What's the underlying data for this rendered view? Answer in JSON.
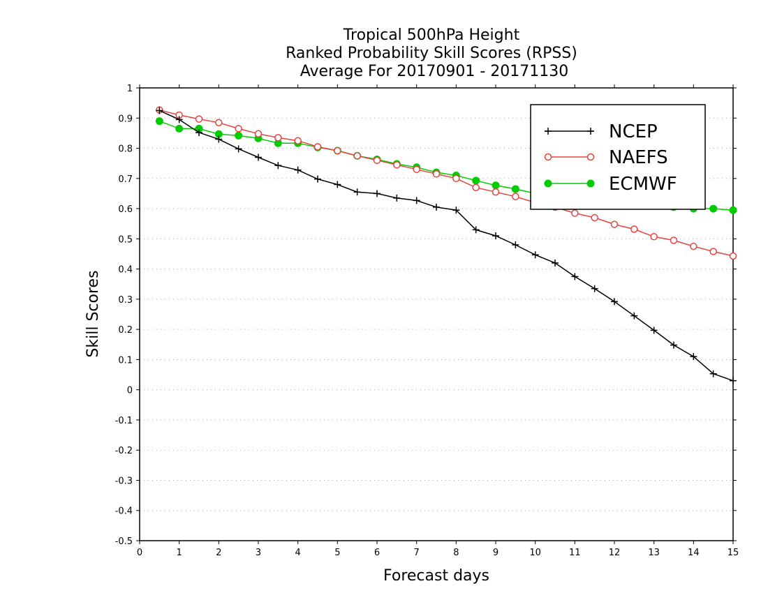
{
  "chart_data": {
    "type": "line",
    "title": [
      "Tropical 500hPa Height",
      "Ranked Probability Skill Scores (RPSS)",
      "Average For 20170901 - 20171130"
    ],
    "xlabel": "Forecast days",
    "ylabel": "Skill Scores",
    "xlim": [
      0,
      15
    ],
    "ylim": [
      -0.5,
      1
    ],
    "x_ticks": [
      "0",
      "1",
      "2",
      "3",
      "4",
      "5",
      "6",
      "7",
      "8",
      "9",
      "10",
      "11",
      "12",
      "13",
      "14",
      "15"
    ],
    "y_ticks": [
      "1",
      "0.9",
      "0.8",
      "0.7",
      "0.6",
      "0.5",
      "0.4",
      "0.3",
      "0.2",
      "0.1",
      "0",
      "-0.1",
      "-0.2",
      "-0.3",
      "-0.4",
      "-0.5"
    ],
    "grid": true,
    "legend_position": "top-right",
    "x": [
      0.5,
      1,
      1.5,
      2,
      2.5,
      3,
      3.5,
      4,
      4.5,
      5,
      5.5,
      6,
      6.5,
      7,
      7.5,
      8,
      8.5,
      9,
      9.5,
      10,
      10.5,
      11,
      11.5,
      12,
      12.5,
      13,
      13.5,
      14,
      14.5,
      15
    ],
    "series": [
      {
        "name": "NCEP",
        "color": "#000000",
        "marker": "plus",
        "values": [
          0.925,
          0.895,
          0.852,
          0.83,
          0.798,
          0.77,
          0.743,
          0.728,
          0.698,
          0.68,
          0.655,
          0.65,
          0.635,
          0.627,
          0.605,
          0.595,
          0.53,
          0.51,
          0.48,
          0.447,
          0.42,
          0.375,
          0.335,
          0.292,
          0.245,
          0.197,
          0.148,
          0.11,
          0.053,
          0.03
        ]
      },
      {
        "name": "NAEFS",
        "color": "#e8423f",
        "marker": "open-circle",
        "values": [
          0.927,
          0.91,
          0.897,
          0.885,
          0.865,
          0.848,
          0.835,
          0.825,
          0.805,
          0.792,
          0.775,
          0.76,
          0.745,
          0.73,
          0.715,
          0.7,
          0.67,
          0.655,
          0.64,
          0.62,
          0.605,
          0.585,
          0.57,
          0.548,
          0.532,
          0.507,
          0.495,
          0.475,
          0.458,
          0.443
        ]
      },
      {
        "name": "ECMWF",
        "color": "#00cc00",
        "marker": "filled-circle",
        "values": [
          0.89,
          0.865,
          0.865,
          0.847,
          0.842,
          0.833,
          0.817,
          0.817,
          0.803,
          0.792,
          0.775,
          0.763,
          0.748,
          0.737,
          0.72,
          0.71,
          0.693,
          0.677,
          0.665,
          0.65,
          0.643,
          0.632,
          0.625,
          0.618,
          0.613,
          0.61,
          0.605,
          0.6,
          0.6,
          0.595
        ]
      }
    ]
  }
}
